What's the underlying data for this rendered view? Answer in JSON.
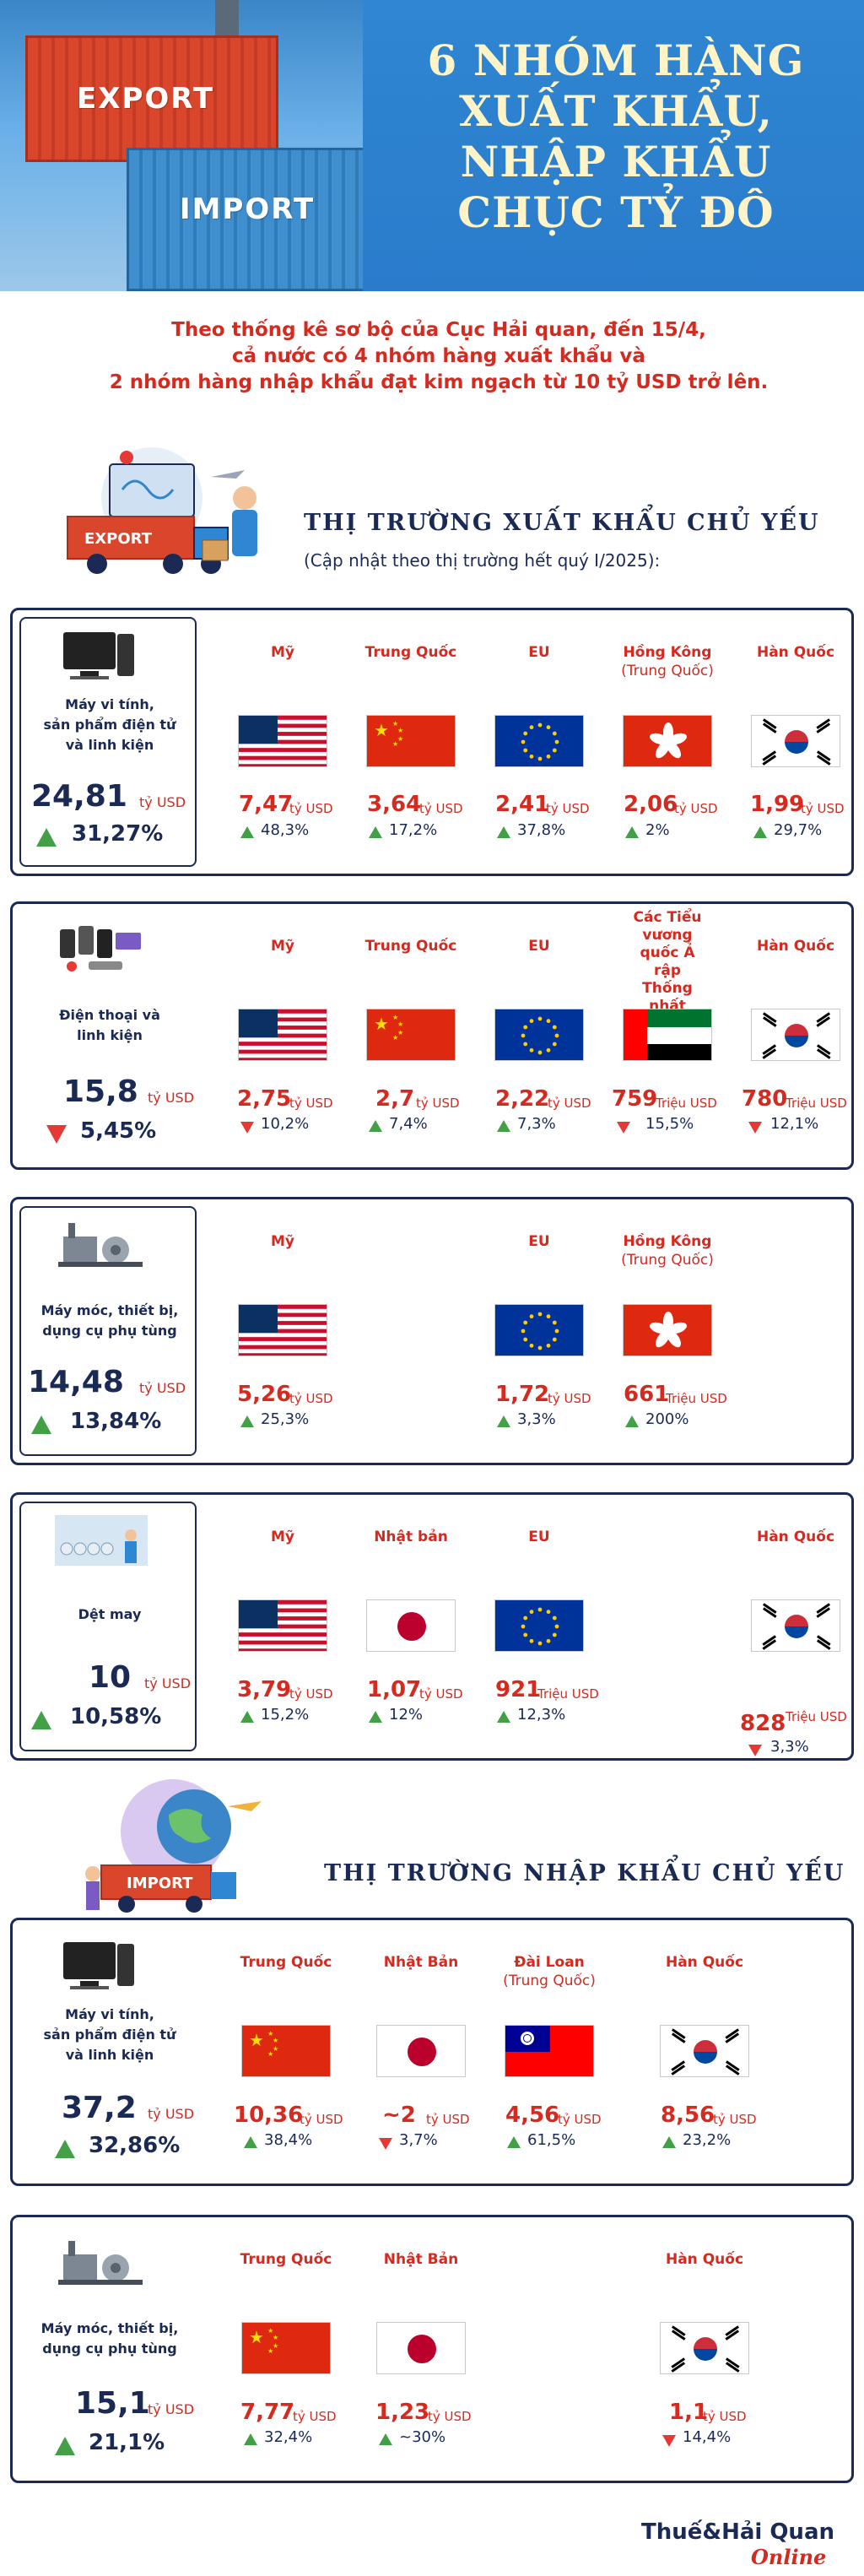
{
  "header": {
    "export_label": "EXPORT",
    "import_label": "IMPORT",
    "title_line1": "6 nhóm hàng",
    "title_line2": "xuất khẩu,",
    "title_line3": "nhập khẩu",
    "title_line4": "chục tỷ đô",
    "intro_line1": "Theo thống kê sơ bộ của Cục Hải quan, đến 15/4,",
    "intro_line2": "cả nước có 4 nhóm hàng xuất khẩu và",
    "intro_line3": "2 nhóm hàng nhập khẩu đạt kim ngạch từ 10 tỷ USD trở lên."
  },
  "export_section": {
    "illustration_label": "EXPORT",
    "title": "THỊ TRƯỜNG XUẤT KHẨU CHỦ YẾU",
    "subtitle": "(Cập nhật theo thị trường hết quý I/2025):"
  },
  "import_section": {
    "illustration_label": "IMPORT",
    "title": "THỊ TRƯỜNG NHẬP KHẨU CHỦ YẾU"
  },
  "cards": [
    {
      "name_lines": [
        "Máy vi tính,",
        "sản phẩm điện tử",
        "và linh kiện"
      ],
      "value": "24,81",
      "unit": "tỷ USD",
      "change": "31,27%",
      "direction": "up",
      "markets": [
        {
          "name": "Mỹ",
          "sub": "",
          "flag": "us",
          "value": "7,47",
          "unit": "tỷ USD",
          "change": "48,3%",
          "direction": "up"
        },
        {
          "name": "Trung Quốc",
          "sub": "",
          "flag": "cn",
          "value": "3,64",
          "unit": "tỷ USD",
          "change": "17,2%",
          "direction": "up"
        },
        {
          "name": "EU",
          "sub": "",
          "flag": "eu",
          "value": "2,41",
          "unit": "tỷ USD",
          "change": "37,8%",
          "direction": "up"
        },
        {
          "name": "Hồng Kông",
          "sub": "(Trung Quốc)",
          "flag": "hk",
          "value": "2,06",
          "unit": "tỷ USD",
          "change": "2%",
          "direction": "up"
        },
        {
          "name": "Hàn Quốc",
          "sub": "",
          "flag": "kr",
          "value": "1,99",
          "unit": "tỷ USD",
          "change": "29,7%",
          "direction": "up"
        }
      ]
    },
    {
      "name_lines": [
        "Điện thoại và",
        "linh kiện"
      ],
      "value": "15,8",
      "unit": "tỷ USD",
      "change": "5,45%",
      "direction": "down",
      "markets": [
        {
          "name": "Mỹ",
          "sub": "",
          "flag": "us",
          "value": "2,75",
          "unit": "tỷ USD",
          "change": "10,2%",
          "direction": "down"
        },
        {
          "name": "Trung Quốc",
          "sub": "",
          "flag": "cn",
          "value": "2,7",
          "unit": "tỷ USD",
          "change": "7,4%",
          "direction": "up"
        },
        {
          "name": "EU",
          "sub": "",
          "flag": "eu",
          "value": "2,22",
          "unit": "tỷ USD",
          "change": "7,3%",
          "direction": "up"
        },
        {
          "name": "Các Tiểu vương quốc Ả rập Thống nhất",
          "sub": "",
          "flag": "ae",
          "value": "759",
          "unit": "Triệu USD",
          "change": "15,5%",
          "direction": "down"
        },
        {
          "name": "Hàn Quốc",
          "sub": "",
          "flag": "kr",
          "value": "780",
          "unit": "Triệu USD",
          "change": "12,1%",
          "direction": "down"
        }
      ]
    },
    {
      "name_lines": [
        "Máy móc, thiết bị,",
        "dụng cụ phụ tùng"
      ],
      "value": "14,48",
      "unit": "tỷ USD",
      "change": "13,84%",
      "direction": "up",
      "markets": [
        {
          "name": "Mỹ",
          "sub": "",
          "flag": "us",
          "value": "5,26",
          "unit": "tỷ USD",
          "change": "25,3%",
          "direction": "up"
        },
        {
          "name": "EU",
          "sub": "",
          "flag": "eu",
          "value": "1,72",
          "unit": "tỷ USD",
          "change": "3,3%",
          "direction": "up"
        },
        {
          "name": "Hồng Kông",
          "sub": "(Trung Quốc)",
          "flag": "hk",
          "value": "661",
          "unit": "Triệu USD",
          "change": "200%",
          "direction": "up"
        }
      ]
    },
    {
      "name_lines": [
        "Dệt may"
      ],
      "value": "10",
      "unit": "tỷ USD",
      "change": "10,58%",
      "direction": "up",
      "markets": [
        {
          "name": "Mỹ",
          "sub": "",
          "flag": "us",
          "value": "3,79",
          "unit": "tỷ USD",
          "change": "15,2%",
          "direction": "up"
        },
        {
          "name": "Nhật bản",
          "sub": "",
          "flag": "jp",
          "value": "1,07",
          "unit": "tỷ USD",
          "change": "12%",
          "direction": "up"
        },
        {
          "name": "EU",
          "sub": "",
          "flag": "eu",
          "value": "921",
          "unit": "Triệu USD",
          "change": "12,3%",
          "direction": "up"
        },
        {
          "name": "Hàn Quốc",
          "sub": "",
          "flag": "kr",
          "value": "828",
          "unit": "Triệu USD",
          "change": "3,3%",
          "direction": "down"
        }
      ]
    },
    {
      "name_lines": [
        "Máy vi tính,",
        "sản phẩm điện tử",
        "và linh kiện"
      ],
      "value": "37,2",
      "unit": "tỷ USD",
      "change": "32,86%",
      "direction": "up",
      "markets": [
        {
          "name": "Trung Quốc",
          "sub": "",
          "flag": "cn",
          "value": "10,36",
          "unit": "tỷ USD",
          "change": "38,4%",
          "direction": "up"
        },
        {
          "name": "Nhật Bản",
          "sub": "",
          "flag": "jp",
          "value": "~2",
          "unit": "tỷ USD",
          "change": "3,7%",
          "direction": "down"
        },
        {
          "name": "Đài Loan",
          "sub": "(Trung Quốc)",
          "flag": "tw",
          "value": "4,56",
          "unit": "tỷ USD",
          "change": "61,5%",
          "direction": "up"
        },
        {
          "name": "Hàn Quốc",
          "sub": "",
          "flag": "kr",
          "value": "8,56",
          "unit": "tỷ USD",
          "change": "23,2%",
          "direction": "up"
        }
      ]
    },
    {
      "name_lines": [
        "Máy móc, thiết bị,",
        "dụng cụ phụ tùng"
      ],
      "value": "15,1",
      "unit": "tỷ USD",
      "change": "21,1%",
      "direction": "up",
      "markets": [
        {
          "name": "Trung Quốc",
          "sub": "",
          "flag": "cn",
          "value": "7,77",
          "unit": "tỷ USD",
          "change": "32,4%",
          "direction": "up"
        },
        {
          "name": "Nhật Bản",
          "sub": "",
          "flag": "jp",
          "value": "1,23",
          "unit": "tỷ USD",
          "change": "~30%",
          "direction": "up"
        },
        {
          "name": "Hàn Quốc",
          "sub": "",
          "flag": "kr",
          "value": "1,1",
          "unit": "tỷ USD",
          "change": "14,4%",
          "direction": "down"
        }
      ]
    }
  ],
  "logo": {
    "main": "Thuế&Hải Quan",
    "sub": "Online"
  }
}
